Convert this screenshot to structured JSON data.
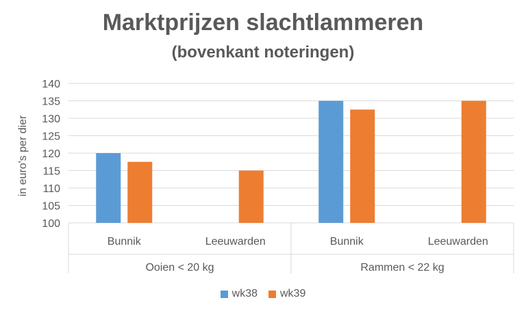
{
  "chart_data": {
    "type": "bar",
    "title": "Marktprijzen slachtlammeren",
    "subtitle": "(bovenkant noteringen)",
    "xlabel": "",
    "ylabel": "in euro's per dier",
    "ylim": [
      100,
      140
    ],
    "yticks": [
      100,
      105,
      110,
      115,
      120,
      125,
      130,
      135,
      140
    ],
    "grid": true,
    "legend_position": "bottom",
    "groups": [
      {
        "label": "Ooien < 20 kg",
        "categories": [
          "Bunnik",
          "Leeuwarden"
        ]
      },
      {
        "label": "Rammen < 22 kg",
        "categories": [
          "Bunnik",
          "Leeuwarden"
        ]
      }
    ],
    "categories": [
      "Bunnik",
      "Leeuwarden",
      "Bunnik",
      "Leeuwarden"
    ],
    "series": [
      {
        "name": "wk38",
        "color": "#5B9BD5",
        "values": [
          120,
          null,
          135,
          null
        ]
      },
      {
        "name": "wk39",
        "color": "#ED7D31",
        "values": [
          117.5,
          115,
          132.5,
          135
        ]
      }
    ]
  }
}
